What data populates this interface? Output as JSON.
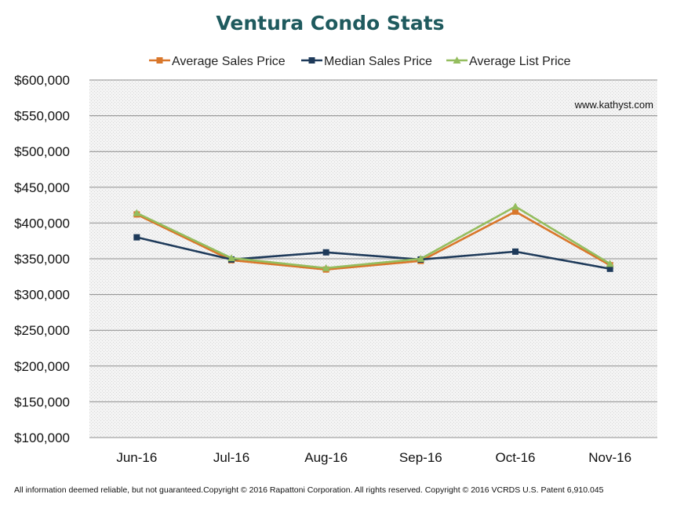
{
  "chart_data": {
    "type": "line",
    "title": "Ventura Condo Stats",
    "categories": [
      "Jun-16",
      "Jul-16",
      "Aug-16",
      "Sep-16",
      "Oct-16",
      "Nov-16"
    ],
    "ylim": [
      100000,
      600000
    ],
    "yticks": [
      100000,
      150000,
      200000,
      250000,
      300000,
      350000,
      400000,
      450000,
      500000,
      550000,
      600000
    ],
    "ytick_labels": [
      "$100,000",
      "$150,000",
      "$200,000",
      "$250,000",
      "$300,000",
      "$350,000",
      "$400,000",
      "$450,000",
      "$500,000",
      "$550,000",
      "$600,000"
    ],
    "grid": true,
    "legend_position": "top",
    "series": [
      {
        "name": "Average Sales Price",
        "values": [
          412000,
          348000,
          335000,
          347000,
          416000,
          341000
        ],
        "color": "#d9772b",
        "marker": "square"
      },
      {
        "name": "Median Sales Price",
        "values": [
          380000,
          349000,
          359000,
          349000,
          360000,
          336000
        ],
        "color": "#1e3a5a",
        "marker": "square"
      },
      {
        "name": "Average List Price",
        "values": [
          414000,
          351000,
          337000,
          350000,
          423000,
          343000
        ],
        "color": "#94bd5e",
        "marker": "triangle"
      }
    ],
    "annotation": "www.kathyst.com"
  },
  "footer": "All information deemed reliable, but not guaranteed.Copyright © 2016 Rapattoni Corporation. All rights reserved. Copyright © 2016 VCRDS U.S. Patent 6,910.045"
}
